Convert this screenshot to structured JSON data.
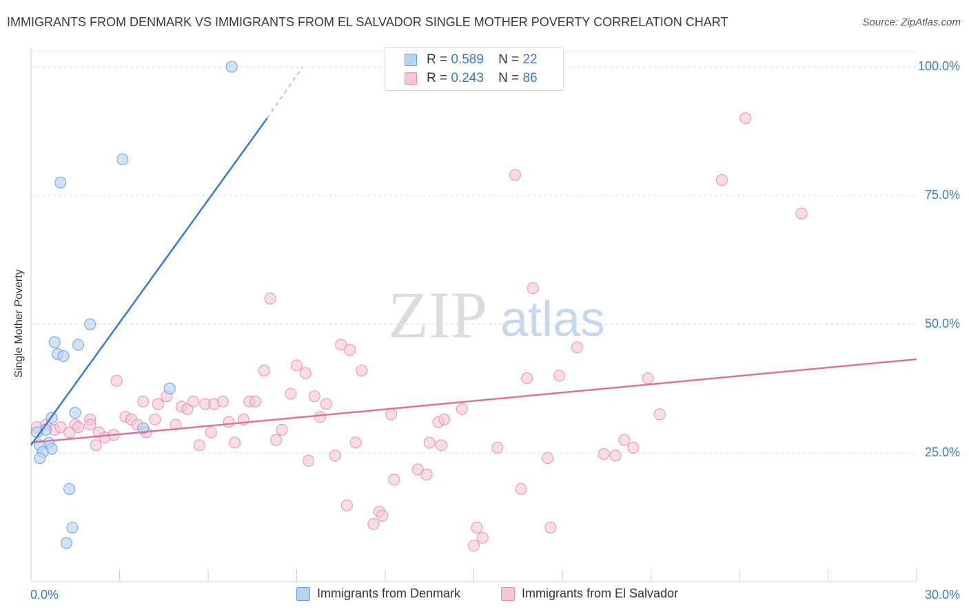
{
  "title": "IMMIGRANTS FROM DENMARK VS IMMIGRANTS FROM EL SALVADOR SINGLE MOTHER POVERTY CORRELATION CHART",
  "source": "Source: ZipAtlas.com",
  "watermark": {
    "zip": "ZIP",
    "atlas": "atlas"
  },
  "legend_top": [
    {
      "r_label": "R =",
      "r_value": "0.589",
      "n_label": "N =",
      "n_value": "22"
    },
    {
      "r_label": "R =",
      "r_value": "0.243",
      "n_label": "N =",
      "n_value": "86"
    }
  ],
  "legend_bottom": [
    "Immigrants from Denmark",
    "Immigrants from El Salvador"
  ],
  "colors": {
    "denmark_fill": "#b7d2f3",
    "denmark_stroke": "#6f9fd6",
    "denmark_line": "#3a78d4",
    "salvador_fill": "#f7c5d5",
    "salvador_stroke": "#e88fae",
    "salvador_line": "#e0719a",
    "tick_label": "#3a78c9",
    "grid": "#dcdcdc"
  },
  "chart_data": {
    "type": "scatter",
    "title": "IMMIGRANTS FROM DENMARK VS IMMIGRANTS FROM EL SALVADOR SINGLE MOTHER POVERTY CORRELATION CHART",
    "xlabel": "",
    "ylabel": "Single Mother Poverty",
    "xlim": [
      0,
      30
    ],
    "ylim": [
      0,
      103
    ],
    "x_tick_labels": [
      {
        "value": 0,
        "label": "0.0%"
      },
      {
        "value": 30,
        "label": "30.0%"
      }
    ],
    "y_tick_labels": [
      {
        "value": 25,
        "label": "25.0%"
      },
      {
        "value": 50,
        "label": "50.0%"
      },
      {
        "value": 75,
        "label": "75.0%"
      },
      {
        "value": 100,
        "label": "100.0%"
      }
    ],
    "grid": true,
    "legend_position": "top-center",
    "series": [
      {
        "name": "Immigrants from Denmark",
        "r": 0.589,
        "n": 22,
        "trend": {
          "x": [
            0,
            8
          ],
          "y": [
            26.5,
            90
          ],
          "dashed_to": {
            "x": 9.2,
            "y": 100
          }
        },
        "points": [
          [
            6.8,
            100
          ],
          [
            3.1,
            82
          ],
          [
            1.0,
            77.5
          ],
          [
            2.0,
            50
          ],
          [
            0.8,
            46.5
          ],
          [
            1.6,
            46
          ],
          [
            0.9,
            44.2
          ],
          [
            1.1,
            43.8
          ],
          [
            4.7,
            37.5
          ],
          [
            1.5,
            32.8
          ],
          [
            0.7,
            31.8
          ],
          [
            3.8,
            29.8
          ],
          [
            0.5,
            29.5
          ],
          [
            0.2,
            29
          ],
          [
            0.6,
            27
          ],
          [
            0.3,
            26.5
          ],
          [
            0.7,
            25.8
          ],
          [
            0.4,
            25.2
          ],
          [
            0.3,
            24
          ],
          [
            1.3,
            18
          ],
          [
            1.4,
            10.5
          ],
          [
            1.2,
            7.5
          ]
        ]
      },
      {
        "name": "Immigrants from El Salvador",
        "r": 0.243,
        "n": 86,
        "trend": {
          "x": [
            0,
            30
          ],
          "y": [
            27.0,
            43.2
          ]
        },
        "points": [
          [
            0.2,
            30
          ],
          [
            0.5,
            30.5
          ],
          [
            0.8,
            29.5
          ],
          [
            1.0,
            30
          ],
          [
            1.3,
            29
          ],
          [
            1.5,
            30.5
          ],
          [
            2.0,
            31.5
          ],
          [
            1.6,
            30
          ],
          [
            2.3,
            29
          ],
          [
            2.0,
            30.5
          ],
          [
            2.2,
            26.5
          ],
          [
            2.5,
            28
          ],
          [
            2.8,
            28.5
          ],
          [
            2.9,
            39
          ],
          [
            3.2,
            32
          ],
          [
            3.4,
            31.5
          ],
          [
            3.6,
            30.5
          ],
          [
            3.8,
            35
          ],
          [
            3.9,
            29
          ],
          [
            4.2,
            31.5
          ],
          [
            4.3,
            34.5
          ],
          [
            4.6,
            36
          ],
          [
            4.9,
            30.5
          ],
          [
            5.1,
            34
          ],
          [
            5.3,
            33.5
          ],
          [
            5.5,
            35
          ],
          [
            5.7,
            26.5
          ],
          [
            5.9,
            34.5
          ],
          [
            6.2,
            34.5
          ],
          [
            6.5,
            35
          ],
          [
            6.1,
            29
          ],
          [
            6.7,
            31
          ],
          [
            6.9,
            27
          ],
          [
            7.2,
            31.5
          ],
          [
            7.4,
            35
          ],
          [
            7.6,
            35
          ],
          [
            8.1,
            55
          ],
          [
            7.9,
            41
          ],
          [
            8.3,
            27.5
          ],
          [
            8.5,
            29.5
          ],
          [
            8.8,
            36.5
          ],
          [
            9.0,
            42
          ],
          [
            9.3,
            40.5
          ],
          [
            9.6,
            36
          ],
          [
            10.0,
            34.5
          ],
          [
            9.8,
            32
          ],
          [
            9.4,
            23.5
          ],
          [
            10.5,
            46
          ],
          [
            10.8,
            45
          ],
          [
            11.2,
            41
          ],
          [
            11.0,
            27
          ],
          [
            10.3,
            24.5
          ],
          [
            10.7,
            14.8
          ],
          [
            11.6,
            11.2
          ],
          [
            11.8,
            13.6
          ],
          [
            11.9,
            12.8
          ],
          [
            12.2,
            32.5
          ],
          [
            12.3,
            19.8
          ],
          [
            13.1,
            21.8
          ],
          [
            13.4,
            20.8
          ],
          [
            13.5,
            27
          ],
          [
            13.8,
            31
          ],
          [
            14.0,
            31.5
          ],
          [
            13.9,
            26.5
          ],
          [
            14.6,
            33.5
          ],
          [
            15.1,
            10.5
          ],
          [
            15.3,
            8.5
          ],
          [
            15.0,
            7
          ],
          [
            15.8,
            26
          ],
          [
            16.4,
            79
          ],
          [
            16.6,
            18
          ],
          [
            16.8,
            39.5
          ],
          [
            17.0,
            57
          ],
          [
            17.5,
            24
          ],
          [
            17.6,
            10.5
          ],
          [
            17.9,
            40
          ],
          [
            18.5,
            45.5
          ],
          [
            19.4,
            24.8
          ],
          [
            19.8,
            24.5
          ],
          [
            20.1,
            27.5
          ],
          [
            20.4,
            26
          ],
          [
            20.9,
            39.5
          ],
          [
            21.3,
            32.5
          ],
          [
            23.4,
            78
          ],
          [
            24.2,
            90
          ],
          [
            26.1,
            71.5
          ]
        ]
      }
    ]
  }
}
